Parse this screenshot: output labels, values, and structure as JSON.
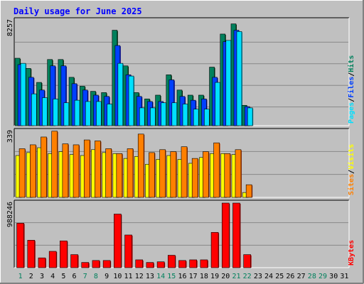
{
  "title": "Daily usage for June 2025",
  "colors": {
    "background": "#c0c0c0",
    "title": "#0000ff",
    "hits": "#00805c",
    "files": "#0040ff",
    "pages": "#00e0ff",
    "visits": "#ffff00",
    "sites": "#ff8000",
    "kbytes": "#ff0000",
    "weekend": "#00805c",
    "weekday": "#000000"
  },
  "chart_data": [
    {
      "type": "bar",
      "panel": "hits-files-pages",
      "max_label": "8257",
      "ylim": [
        0,
        8257
      ],
      "legend": [
        "Pages",
        "Files",
        "Hits"
      ],
      "categories": [
        "1",
        "2",
        "3",
        "4",
        "5",
        "6",
        "7",
        "8",
        "9",
        "10",
        "11",
        "12",
        "13",
        "14",
        "15",
        "16",
        "17",
        "18",
        "19",
        "20",
        "21",
        "22",
        "23",
        "24",
        "25",
        "26",
        "27",
        "28",
        "29",
        "30",
        "31"
      ],
      "series": [
        {
          "name": "Hits",
          "values": [
            5300,
            4500,
            3400,
            5200,
            5200,
            3800,
            3100,
            2700,
            2600,
            7500,
            4700,
            2600,
            2100,
            2400,
            4000,
            2800,
            2400,
            2400,
            4600,
            7200,
            8000,
            1600,
            0,
            0,
            0,
            0,
            0,
            0,
            0,
            0,
            0
          ]
        },
        {
          "name": "Files",
          "values": [
            4800,
            3800,
            2800,
            4700,
            4700,
            3300,
            2800,
            2400,
            2300,
            6300,
            4000,
            2300,
            1900,
            1900,
            3600,
            2300,
            2000,
            2100,
            3800,
            6600,
            7500,
            1500,
            0,
            0,
            0,
            0,
            0,
            0,
            0,
            0,
            0
          ]
        },
        {
          "name": "Pages",
          "values": [
            4900,
            2500,
            2200,
            2100,
            1800,
            2000,
            1900,
            1900,
            1700,
            4900,
            3900,
            1400,
            1400,
            1800,
            1800,
            1700,
            1300,
            1300,
            3400,
            6700,
            7400,
            1400,
            0,
            0,
            0,
            0,
            0,
            0,
            0,
            0,
            0
          ]
        }
      ]
    },
    {
      "type": "bar",
      "panel": "visits-sites",
      "max_label": "339",
      "ylim": [
        0,
        339
      ],
      "legend": [
        "Sites",
        "Visits"
      ],
      "categories": [
        "1",
        "2",
        "3",
        "4",
        "5",
        "6",
        "7",
        "8",
        "9",
        "10",
        "11",
        "12",
        "13",
        "14",
        "15",
        "16",
        "17",
        "18",
        "19",
        "20",
        "21",
        "22",
        "23",
        "24",
        "25",
        "26",
        "27",
        "28",
        "29",
        "30",
        "31"
      ],
      "series": [
        {
          "name": "Visits",
          "values": [
            215,
            230,
            255,
            225,
            235,
            220,
            215,
            245,
            230,
            225,
            200,
            210,
            170,
            195,
            215,
            195,
            175,
            205,
            225,
            225,
            220,
            25,
            0,
            0,
            0,
            0,
            0,
            0,
            0,
            0,
            0
          ]
        },
        {
          "name": "Sites",
          "values": [
            250,
            270,
            310,
            340,
            275,
            270,
            295,
            290,
            250,
            225,
            250,
            325,
            230,
            245,
            235,
            260,
            200,
            235,
            280,
            225,
            245,
            65,
            0,
            0,
            0,
            0,
            0,
            0,
            0,
            0,
            0
          ]
        }
      ]
    },
    {
      "type": "bar",
      "panel": "kbytes",
      "max_label": "988246",
      "ylim": [
        0,
        988246
      ],
      "legend": [
        "KBytes"
      ],
      "categories": [
        "1",
        "2",
        "3",
        "4",
        "5",
        "6",
        "7",
        "8",
        "9",
        "10",
        "11",
        "12",
        "13",
        "14",
        "15",
        "16",
        "17",
        "18",
        "19",
        "20",
        "21",
        "22",
        "23",
        "24",
        "25",
        "26",
        "27",
        "28",
        "29",
        "30",
        "31"
      ],
      "series": [
        {
          "name": "KBytes",
          "values": [
            680000,
            420000,
            150000,
            250000,
            410000,
            200000,
            80000,
            110000,
            110000,
            820000,
            500000,
            120000,
            80000,
            90000,
            190000,
            110000,
            120000,
            120000,
            540000,
            988246,
            988246,
            200000,
            0,
            0,
            0,
            0,
            0,
            0,
            0,
            0,
            0
          ]
        }
      ]
    }
  ],
  "x_labels": [
    "1",
    "2",
    "3",
    "4",
    "5",
    "6",
    "7",
    "8",
    "9",
    "10",
    "11",
    "12",
    "13",
    "14",
    "15",
    "16",
    "17",
    "18",
    "19",
    "20",
    "21",
    "22",
    "23",
    "24",
    "25",
    "26",
    "27",
    "28",
    "29",
    "30",
    "31"
  ],
  "weekend_days": [
    1,
    7,
    8,
    14,
    15,
    21,
    22,
    28,
    29
  ]
}
